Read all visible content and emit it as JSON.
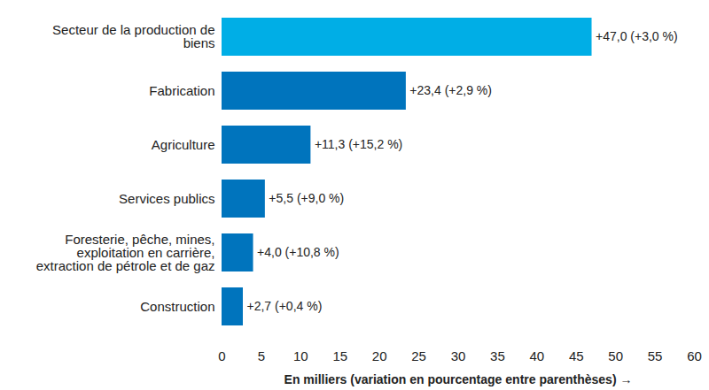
{
  "chart_data": {
    "type": "bar",
    "orientation": "horizontal",
    "categories": [
      "Secteur de la production de\nbiens",
      "Fabrication",
      "Agriculture",
      "Services publics",
      "Foresterie, pêche, mines,\nexploitation en carrière,\nextraction de pétrole et de gaz",
      "Construction"
    ],
    "values": [
      47.0,
      23.4,
      11.3,
      5.5,
      4.0,
      2.7
    ],
    "value_labels": [
      "+47,0 (+3,0 %)",
      "+23,4 (+2,9 %)",
      "+11,3 (+15,2 %)",
      "+5,5 (+9,0 %)",
      "+4,0 (+10,8 %)",
      "+2,7 (+0,4 %)"
    ],
    "colors": [
      "#00aee6",
      "#0074bd",
      "#0074bd",
      "#0074bd",
      "#0074bd",
      "#0074bd"
    ],
    "xlabel": "En milliers (variation en pourcentage entre parenthèses)",
    "xlim": [
      0,
      60
    ],
    "xticks": [
      0,
      5,
      10,
      15,
      20,
      25,
      30,
      35,
      40,
      45,
      50,
      55,
      60
    ],
    "grid": false,
    "data_labels": true
  }
}
